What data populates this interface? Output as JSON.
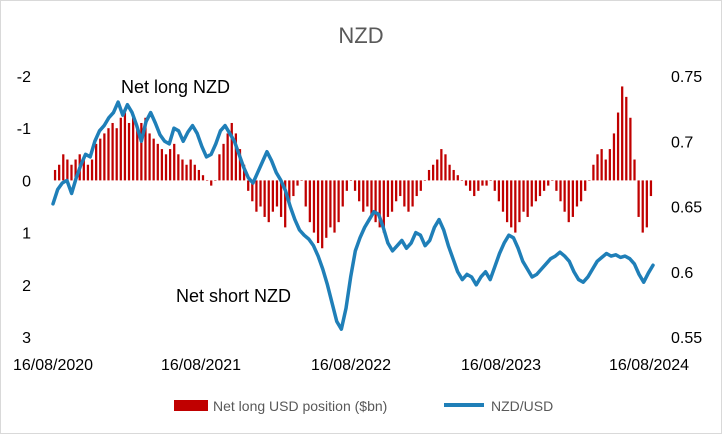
{
  "chart_data": {
    "type": "bar+line",
    "title": "NZD",
    "x_ticks": [
      "16/08/2020",
      "16/08/2021",
      "16/08/2022",
      "16/08/2023",
      "16/08/2024"
    ],
    "y_left": {
      "ticks": [
        -2,
        -1,
        0,
        1,
        2,
        3
      ],
      "tick_labels": [
        "-2",
        "-1",
        "0",
        "1",
        "2",
        "3"
      ],
      "range": [
        -2,
        3
      ],
      "inverted": true
    },
    "y_right": {
      "ticks": [
        0.55,
        0.6,
        0.65,
        0.7,
        0.75
      ],
      "tick_labels": [
        "0.55",
        "0.6",
        "0.65",
        "0.7",
        "0.75"
      ],
      "range": [
        0.55,
        0.75
      ]
    },
    "annotations": [
      "Net long NZD",
      "Net short NZD"
    ],
    "series": [
      {
        "name": "Net long USD position ($bn)",
        "kind": "bar",
        "axis": "left",
        "color": "#c00000",
        "values": [
          -0.2,
          -0.3,
          -0.5,
          -0.4,
          -0.3,
          -0.4,
          -0.5,
          -0.4,
          -0.3,
          -0.4,
          -0.7,
          -0.8,
          -0.9,
          -1.0,
          -1.1,
          -1.0,
          -1.2,
          -1.3,
          -1.1,
          -1.2,
          -1.0,
          -1.1,
          -1.2,
          -0.9,
          -0.8,
          -0.7,
          -0.6,
          -0.5,
          -0.6,
          -0.7,
          -0.5,
          -0.4,
          -0.3,
          -0.4,
          -0.3,
          -0.2,
          -0.1,
          0.0,
          0.1,
          0.0,
          -0.5,
          -0.7,
          -0.9,
          -1.1,
          -0.9,
          -0.6,
          -0.3,
          0.2,
          0.4,
          0.6,
          0.5,
          0.7,
          0.8,
          0.6,
          0.5,
          0.7,
          0.9,
          0.4,
          0.3,
          0.1,
          0.0,
          0.5,
          0.8,
          1.0,
          1.2,
          1.3,
          1.1,
          0.9,
          1.0,
          0.8,
          0.5,
          0.2,
          0.0,
          0.2,
          0.4,
          0.6,
          0.5,
          0.7,
          0.8,
          0.9,
          1.0,
          0.7,
          0.6,
          0.4,
          0.3,
          0.5,
          0.6,
          0.5,
          0.3,
          0.2,
          0.0,
          -0.2,
          -0.3,
          -0.4,
          -0.6,
          -0.5,
          -0.3,
          -0.2,
          -0.1,
          0.0,
          0.1,
          0.2,
          0.3,
          0.2,
          0.1,
          0.1,
          0.0,
          0.2,
          0.4,
          0.6,
          0.8,
          0.9,
          1.0,
          0.8,
          0.6,
          0.7,
          0.5,
          0.4,
          0.3,
          0.2,
          0.1,
          0.0,
          0.2,
          0.4,
          0.6,
          0.8,
          0.7,
          0.5,
          0.4,
          0.2,
          0.0,
          -0.3,
          -0.5,
          -0.6,
          -0.4,
          -0.6,
          -0.9,
          -1.3,
          -1.8,
          -1.6,
          -1.2,
          -0.4,
          0.7,
          1.0,
          0.9,
          0.3
        ]
      },
      {
        "name": "NZD/USD",
        "kind": "line",
        "axis": "right",
        "color": "#1f7fb8",
        "values": [
          0.652,
          0.663,
          0.668,
          0.67,
          0.66,
          0.672,
          0.682,
          0.69,
          0.688,
          0.7,
          0.708,
          0.712,
          0.718,
          0.722,
          0.73,
          0.72,
          0.728,
          0.722,
          0.712,
          0.7,
          0.715,
          0.722,
          0.714,
          0.705,
          0.7,
          0.698,
          0.71,
          0.708,
          0.7,
          0.707,
          0.712,
          0.706,
          0.696,
          0.688,
          0.69,
          0.698,
          0.708,
          0.712,
          0.706,
          0.7,
          0.69,
          0.68,
          0.672,
          0.668,
          0.676,
          0.684,
          0.692,
          0.685,
          0.676,
          0.67,
          0.662,
          0.65,
          0.64,
          0.632,
          0.628,
          0.625,
          0.62,
          0.612,
          0.602,
          0.59,
          0.576,
          0.562,
          0.556,
          0.572,
          0.596,
          0.616,
          0.626,
          0.634,
          0.64,
          0.646,
          0.644,
          0.634,
          0.622,
          0.616,
          0.62,
          0.624,
          0.618,
          0.622,
          0.63,
          0.628,
          0.62,
          0.624,
          0.634,
          0.64,
          0.632,
          0.62,
          0.61,
          0.6,
          0.594,
          0.598,
          0.596,
          0.59,
          0.596,
          0.6,
          0.594,
          0.604,
          0.614,
          0.622,
          0.628,
          0.626,
          0.618,
          0.608,
          0.602,
          0.596,
          0.598,
          0.602,
          0.606,
          0.61,
          0.612,
          0.615,
          0.612,
          0.608,
          0.6,
          0.594,
          0.592,
          0.596,
          0.602,
          0.608,
          0.611,
          0.614,
          0.612,
          0.613,
          0.611,
          0.612,
          0.61,
          0.606,
          0.598,
          0.592,
          0.599,
          0.605
        ]
      }
    ],
    "legend": {
      "position": "bottom"
    }
  }
}
